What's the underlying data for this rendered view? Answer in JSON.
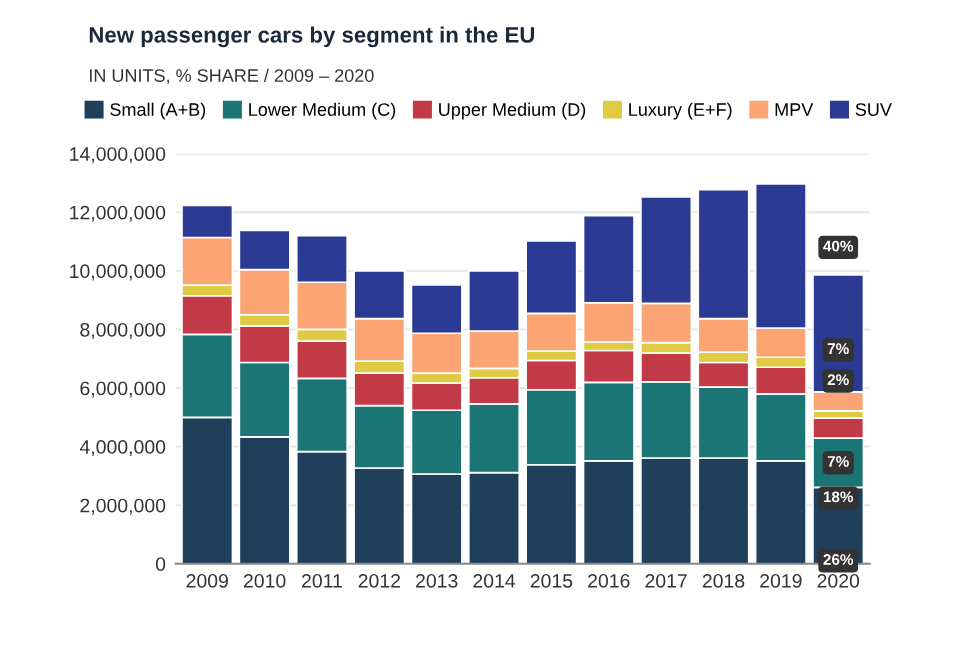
{
  "chart_data": {
    "type": "bar",
    "stacked": true,
    "title": "New passenger cars by segment in the EU",
    "subtitle": "IN UNITS, % SHARE / 2009 – 2020",
    "categories": [
      "2009",
      "2010",
      "2011",
      "2012",
      "2013",
      "2014",
      "2015",
      "2016",
      "2017",
      "2018",
      "2019",
      "2020"
    ],
    "series": [
      {
        "name": "Small (A+B)",
        "color": "#1f3f5b",
        "values": [
          5000000,
          4330000,
          3830000,
          3270000,
          3060000,
          3110000,
          3380000,
          3510000,
          3610000,
          3610000,
          3510000,
          2610000
        ]
      },
      {
        "name": "Lower Medium (C)",
        "color": "#1b7574",
        "values": [
          2830000,
          2540000,
          2500000,
          2130000,
          2180000,
          2350000,
          2560000,
          2680000,
          2600000,
          2420000,
          2290000,
          1680000
        ]
      },
      {
        "name": "Upper Medium (D)",
        "color": "#c23a45",
        "values": [
          1320000,
          1250000,
          1270000,
          1110000,
          930000,
          890000,
          1000000,
          1090000,
          980000,
          840000,
          910000,
          680000
        ]
      },
      {
        "name": "Luxury (E+F)",
        "color": "#e0c943",
        "values": [
          360000,
          380000,
          400000,
          410000,
          340000,
          320000,
          320000,
          290000,
          360000,
          360000,
          340000,
          250000
        ]
      },
      {
        "name": "MPV",
        "color": "#fba574",
        "values": [
          1630000,
          1540000,
          1610000,
          1450000,
          1360000,
          1270000,
          1290000,
          1340000,
          1340000,
          1140000,
          1000000,
          650000
        ]
      },
      {
        "name": "SUV",
        "color": "#2b3a92",
        "values": [
          1090000,
          1340000,
          1590000,
          1630000,
          1650000,
          2060000,
          2470000,
          2970000,
          3630000,
          4400000,
          4920000,
          3990000
        ]
      }
    ],
    "annotations": [
      {
        "text": "40%",
        "x": "2020",
        "y": 10800000
      },
      {
        "text": "7%",
        "x": "2020",
        "y": 7300000
      },
      {
        "text": "2%",
        "x": "2020",
        "y": 6240000
      },
      {
        "text": "7%",
        "x": "2020",
        "y": 3450000
      },
      {
        "text": "18%",
        "x": "2020",
        "y": 2240000
      },
      {
        "text": "26%",
        "x": "2020",
        "y": 100000
      }
    ],
    "ylim": [
      0,
      14000000
    ],
    "yticks": [
      {
        "value": 0,
        "label": "0"
      },
      {
        "value": 2000000,
        "label": "2,000,000"
      },
      {
        "value": 4000000,
        "label": "4,000,000"
      },
      {
        "value": 6000000,
        "label": "6,000,000"
      },
      {
        "value": 8000000,
        "label": "8,000,000"
      },
      {
        "value": 10000000,
        "label": "10,000,000"
      },
      {
        "value": 12000000,
        "label": "12,000,000"
      },
      {
        "value": 14000000,
        "label": "14,000,000"
      }
    ],
    "grid": "y",
    "legend": "top"
  }
}
